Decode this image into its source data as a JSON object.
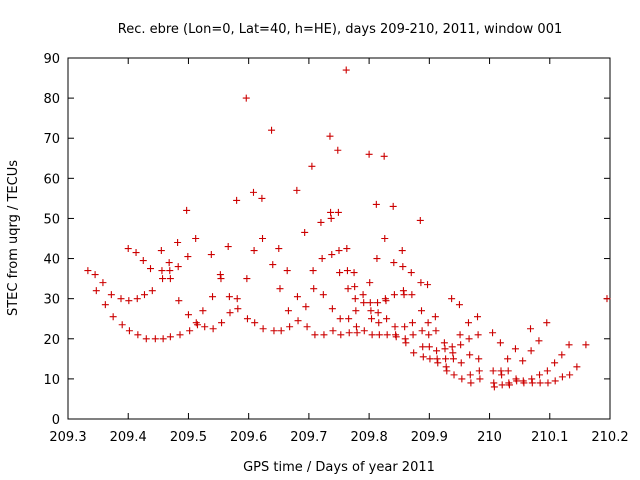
{
  "chart_data": {
    "type": "scatter",
    "title": "Rec. ebre (Lon=0, Lat=40, h=HE), days 209-210, 2011, window 001",
    "xlabel": "GPS time / Days of year 2011",
    "ylabel": "STEC from uqrg / TECUs",
    "xlim": [
      209.3,
      210.2
    ],
    "ylim": [
      0,
      90
    ],
    "xticks": [
      "209.3",
      "209.4",
      "209.5",
      "209.6",
      "209.7",
      "209.8",
      "209.9",
      "210",
      "210.1",
      "210.2"
    ],
    "yticks": [
      "0",
      "10",
      "20",
      "30",
      "40",
      "50",
      "60",
      "70",
      "80",
      "90"
    ],
    "grid": false,
    "marker": "+",
    "marker_color": "#cc0000",
    "series": [
      {
        "name": "STEC",
        "points": [
          [
            209.333,
            37
          ],
          [
            209.345,
            36
          ],
          [
            209.347,
            32
          ],
          [
            209.358,
            34
          ],
          [
            209.362,
            28.5
          ],
          [
            209.372,
            31
          ],
          [
            209.375,
            25.5
          ],
          [
            209.388,
            30
          ],
          [
            209.39,
            23.5
          ],
          [
            209.4,
            42.5
          ],
          [
            209.401,
            29.5
          ],
          [
            209.402,
            22
          ],
          [
            209.413,
            41.5
          ],
          [
            209.415,
            30
          ],
          [
            209.416,
            21
          ],
          [
            209.425,
            39.5
          ],
          [
            209.427,
            31
          ],
          [
            209.43,
            20
          ],
          [
            209.437,
            37.5
          ],
          [
            209.44,
            32
          ],
          [
            209.445,
            20
          ],
          [
            209.455,
            42
          ],
          [
            209.456,
            37
          ],
          [
            209.457,
            35
          ],
          [
            209.458,
            20
          ],
          [
            209.468,
            39
          ],
          [
            209.469,
            37
          ],
          [
            209.47,
            35
          ],
          [
            209.47,
            20.5
          ],
          [
            209.482,
            44
          ],
          [
            209.483,
            38
          ],
          [
            209.484,
            29.5
          ],
          [
            209.486,
            21
          ],
          [
            209.497,
            52
          ],
          [
            209.499,
            40.5
          ],
          [
            209.5,
            26
          ],
          [
            209.502,
            22
          ],
          [
            209.512,
            45
          ],
          [
            209.513,
            24
          ],
          [
            209.515,
            23.5
          ],
          [
            209.524,
            27
          ],
          [
            209.527,
            23
          ],
          [
            209.538,
            41
          ],
          [
            209.54,
            30.5
          ],
          [
            209.541,
            22.5
          ],
          [
            209.553,
            36
          ],
          [
            209.554,
            35
          ],
          [
            209.555,
            24
          ],
          [
            209.566,
            43
          ],
          [
            209.568,
            30.5
          ],
          [
            209.569,
            26.5
          ],
          [
            209.58,
            54.5
          ],
          [
            209.581,
            30
          ],
          [
            209.582,
            27.5
          ],
          [
            209.596,
            80
          ],
          [
            209.597,
            35
          ],
          [
            209.598,
            25
          ],
          [
            209.608,
            56.5
          ],
          [
            209.609,
            42
          ],
          [
            209.61,
            24
          ],
          [
            209.622,
            55
          ],
          [
            209.623,
            45
          ],
          [
            209.624,
            22.5
          ],
          [
            209.638,
            72
          ],
          [
            209.64,
            38.5
          ],
          [
            209.642,
            22
          ],
          [
            209.65,
            42.5
          ],
          [
            209.652,
            32.5
          ],
          [
            209.654,
            22
          ],
          [
            209.664,
            37
          ],
          [
            209.666,
            27
          ],
          [
            209.668,
            23
          ],
          [
            209.68,
            57
          ],
          [
            209.681,
            30.5
          ],
          [
            209.682,
            24.5
          ],
          [
            209.693,
            46.5
          ],
          [
            209.695,
            28
          ],
          [
            209.697,
            23
          ],
          [
            209.705,
            63
          ],
          [
            209.707,
            37
          ],
          [
            209.708,
            32.5
          ],
          [
            209.71,
            21
          ],
          [
            209.72,
            49
          ],
          [
            209.722,
            40
          ],
          [
            209.724,
            31
          ],
          [
            209.725,
            21
          ],
          [
            209.735,
            70.5
          ],
          [
            209.736,
            51.5
          ],
          [
            209.737,
            50
          ],
          [
            209.738,
            41
          ],
          [
            209.739,
            27.5
          ],
          [
            209.74,
            22
          ],
          [
            209.748,
            67
          ],
          [
            209.749,
            51.5
          ],
          [
            209.75,
            42
          ],
          [
            209.751,
            36.5
          ],
          [
            209.752,
            25
          ],
          [
            209.753,
            21
          ],
          [
            209.762,
            87
          ],
          [
            209.763,
            42.5
          ],
          [
            209.764,
            37
          ],
          [
            209.765,
            32.5
          ],
          [
            209.766,
            25
          ],
          [
            209.767,
            21.5
          ],
          [
            209.775,
            36.5
          ],
          [
            209.776,
            33
          ],
          [
            209.777,
            30
          ],
          [
            209.778,
            27
          ],
          [
            209.779,
            23
          ],
          [
            209.78,
            21.5
          ],
          [
            209.79,
            31
          ],
          [
            209.791,
            29
          ],
          [
            209.792,
            22
          ],
          [
            209.8,
            66
          ],
          [
            209.801,
            34
          ],
          [
            209.802,
            29
          ],
          [
            209.803,
            27
          ],
          [
            209.804,
            25
          ],
          [
            209.805,
            21
          ],
          [
            209.812,
            53.5
          ],
          [
            209.813,
            40
          ],
          [
            209.814,
            29
          ],
          [
            209.815,
            26.5
          ],
          [
            209.816,
            24
          ],
          [
            209.817,
            21
          ],
          [
            209.825,
            65.5
          ],
          [
            209.826,
            45
          ],
          [
            209.827,
            30
          ],
          [
            209.828,
            29.5
          ],
          [
            209.829,
            25
          ],
          [
            209.83,
            21
          ],
          [
            209.84,
            53
          ],
          [
            209.841,
            39
          ],
          [
            209.842,
            31
          ],
          [
            209.843,
            23
          ],
          [
            209.844,
            21
          ],
          [
            209.845,
            20.5
          ],
          [
            209.855,
            42
          ],
          [
            209.856,
            38
          ],
          [
            209.857,
            32
          ],
          [
            209.858,
            31
          ],
          [
            209.859,
            23
          ],
          [
            209.86,
            20
          ],
          [
            209.861,
            19
          ],
          [
            209.87,
            36.5
          ],
          [
            209.871,
            31
          ],
          [
            209.872,
            24
          ],
          [
            209.873,
            21
          ],
          [
            209.874,
            16.5
          ],
          [
            209.885,
            49.5
          ],
          [
            209.886,
            34
          ],
          [
            209.887,
            27
          ],
          [
            209.888,
            22
          ],
          [
            209.889,
            18
          ],
          [
            209.89,
            15.5
          ],
          [
            209.897,
            33.5
          ],
          [
            209.898,
            24
          ],
          [
            209.899,
            21
          ],
          [
            209.9,
            18
          ],
          [
            209.901,
            15
          ],
          [
            209.91,
            25.5
          ],
          [
            209.911,
            22
          ],
          [
            209.912,
            17
          ],
          [
            209.913,
            15
          ],
          [
            209.914,
            14
          ],
          [
            209.925,
            19
          ],
          [
            209.926,
            17.5
          ],
          [
            209.927,
            15
          ],
          [
            209.928,
            13
          ],
          [
            209.929,
            12
          ],
          [
            209.937,
            30
          ],
          [
            209.938,
            18
          ],
          [
            209.939,
            16.5
          ],
          [
            209.94,
            15
          ],
          [
            209.941,
            11
          ],
          [
            209.95,
            28.5
          ],
          [
            209.951,
            21
          ],
          [
            209.952,
            18.5
          ],
          [
            209.953,
            14
          ],
          [
            209.954,
            10
          ],
          [
            209.965,
            24
          ],
          [
            209.966,
            20
          ],
          [
            209.967,
            16
          ],
          [
            209.968,
            11
          ],
          [
            209.969,
            9
          ],
          [
            209.98,
            25.5
          ],
          [
            209.981,
            21
          ],
          [
            209.982,
            15
          ],
          [
            209.983,
            12
          ],
          [
            209.984,
            10
          ],
          [
            210.005,
            21.5
          ],
          [
            210.006,
            12
          ],
          [
            210.007,
            9
          ],
          [
            210.008,
            8
          ],
          [
            210.018,
            19
          ],
          [
            210.019,
            12
          ],
          [
            210.02,
            11
          ],
          [
            210.021,
            8.5
          ],
          [
            210.03,
            15
          ],
          [
            210.031,
            12
          ],
          [
            210.032,
            9
          ],
          [
            210.033,
            8.5
          ],
          [
            210.043,
            17.5
          ],
          [
            210.044,
            10
          ],
          [
            210.045,
            9.5
          ],
          [
            210.055,
            14.5
          ],
          [
            210.056,
            9.5
          ],
          [
            210.057,
            9
          ],
          [
            210.068,
            22.5
          ],
          [
            210.069,
            17
          ],
          [
            210.07,
            10
          ],
          [
            210.071,
            9
          ],
          [
            210.082,
            19.5
          ],
          [
            210.083,
            11
          ],
          [
            210.084,
            9
          ],
          [
            210.095,
            24
          ],
          [
            210.096,
            12
          ],
          [
            210.097,
            9
          ],
          [
            210.108,
            14
          ],
          [
            210.109,
            9.5
          ],
          [
            210.12,
            16
          ],
          [
            210.121,
            10.5
          ],
          [
            210.132,
            18.5
          ],
          [
            210.133,
            11
          ],
          [
            210.145,
            13
          ],
          [
            210.16,
            18.5
          ],
          [
            210.195,
            30
          ]
        ]
      }
    ]
  }
}
